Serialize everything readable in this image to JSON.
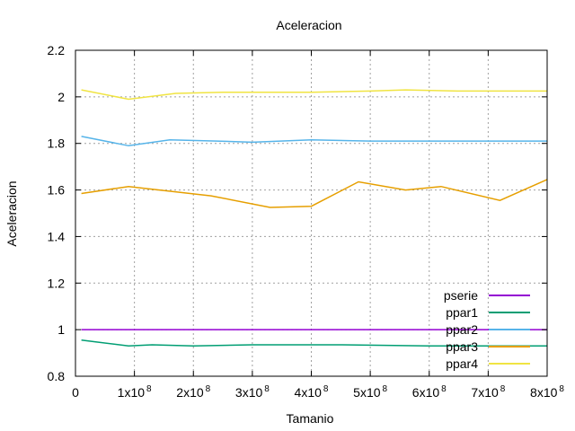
{
  "chart_data": {
    "type": "line",
    "title": "Aceleracion",
    "xlabel": "Tamanio",
    "ylabel": "Aceleracion",
    "xlim": [
      0,
      800000000
    ],
    "ylim": [
      0.8,
      2.2
    ],
    "grid": true,
    "legend_position": "bottom-right",
    "x_ticks": [
      {
        "value": 0,
        "label": "0",
        "exp": ""
      },
      {
        "value": 100000000,
        "label": "1x10",
        "exp": "8"
      },
      {
        "value": 200000000,
        "label": "2x10",
        "exp": "8"
      },
      {
        "value": 300000000,
        "label": "3x10",
        "exp": "8"
      },
      {
        "value": 400000000,
        "label": "4x10",
        "exp": "8"
      },
      {
        "value": 500000000,
        "label": "5x10",
        "exp": "8"
      },
      {
        "value": 600000000,
        "label": "6x10",
        "exp": "8"
      },
      {
        "value": 700000000,
        "label": "7x10",
        "exp": "8"
      },
      {
        "value": 800000000,
        "label": "8x10",
        "exp": "8"
      }
    ],
    "y_ticks": [
      {
        "value": 0.8,
        "label": "0.8"
      },
      {
        "value": 1.0,
        "label": "1"
      },
      {
        "value": 1.2,
        "label": "1.2"
      },
      {
        "value": 1.4,
        "label": "1.4"
      },
      {
        "value": 1.6,
        "label": "1.6"
      },
      {
        "value": 1.8,
        "label": "1.8"
      },
      {
        "value": 2.0,
        "label": "2"
      },
      {
        "value": 2.2,
        "label": "2.2"
      }
    ],
    "series": [
      {
        "name": "pserie",
        "color": "#9400d3",
        "x": [
          10000000,
          800000000
        ],
        "y": [
          1.0,
          1.0
        ]
      },
      {
        "name": "ppar1",
        "color": "#009e73",
        "x": [
          10000000,
          90000000,
          130000000,
          200000000,
          300000000,
          450000000,
          600000000,
          800000000
        ],
        "y": [
          0.955,
          0.93,
          0.935,
          0.93,
          0.935,
          0.935,
          0.93,
          0.93
        ]
      },
      {
        "name": "ppar2",
        "color": "#56b4e9",
        "x": [
          10000000,
          90000000,
          160000000,
          240000000,
          300000000,
          400000000,
          500000000,
          620000000,
          700000000,
          800000000
        ],
        "y": [
          1.83,
          1.79,
          1.815,
          1.81,
          1.805,
          1.815,
          1.81,
          1.81,
          1.81,
          1.81
        ]
      },
      {
        "name": "ppar3",
        "color": "#e69f00",
        "x": [
          10000000,
          90000000,
          230000000,
          330000000,
          400000000,
          480000000,
          560000000,
          620000000,
          720000000,
          800000000
        ],
        "y": [
          1.585,
          1.615,
          1.575,
          1.525,
          1.53,
          1.635,
          1.6,
          1.615,
          1.555,
          1.645
        ]
      },
      {
        "name": "ppar4",
        "color": "#f0e442",
        "x": [
          10000000,
          90000000,
          170000000,
          250000000,
          400000000,
          500000000,
          560000000,
          650000000,
          800000000
        ],
        "y": [
          2.03,
          1.99,
          2.015,
          2.02,
          2.02,
          2.025,
          2.03,
          2.025,
          2.025
        ]
      }
    ]
  }
}
